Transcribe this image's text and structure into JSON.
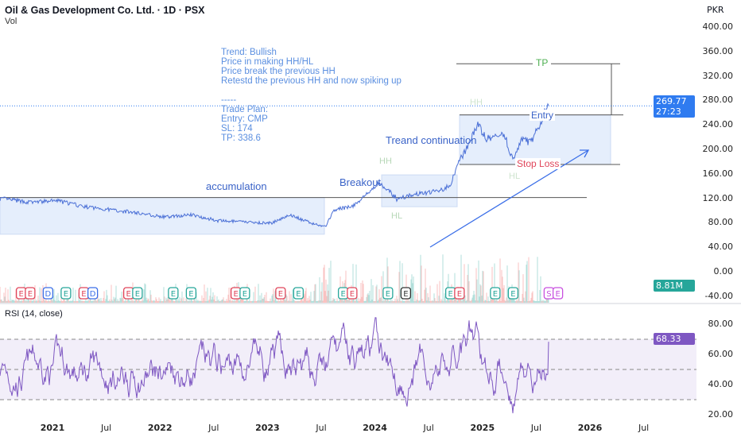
{
  "header": {
    "title": "Oil & Gas Development Co. Ltd. · 1D · PSX",
    "volume_label": "Vol",
    "currency": "PKR"
  },
  "rsi_pane": {
    "title": "RSI (14, close)",
    "value": "68.33",
    "ticks": [
      "80.00",
      "60.00",
      "40.00",
      "20.00"
    ],
    "upper_band": 70,
    "lower_band": 30,
    "color": "#7e57c2"
  },
  "price_axis": {
    "ticks": [
      "400.00",
      "360.00",
      "320.00",
      "280.00",
      "240.00",
      "200.00",
      "160.00",
      "120.00",
      "80.00",
      "40.00",
      "0.00",
      "-40.00"
    ],
    "last_price": "269.77",
    "countdown": "27:23",
    "volume_value": "8.81M"
  },
  "time_axis": {
    "ticks": [
      {
        "label": "2021",
        "year": true
      },
      {
        "label": "Jul"
      },
      {
        "label": "2022",
        "year": true
      },
      {
        "label": "Jul"
      },
      {
        "label": "2023",
        "year": true
      },
      {
        "label": "Jul"
      },
      {
        "label": "2024",
        "year": true
      },
      {
        "label": "Jul"
      },
      {
        "label": "2025",
        "year": true
      },
      {
        "label": "Jul"
      },
      {
        "label": "2026",
        "year": true
      },
      {
        "label": "Jul"
      }
    ]
  },
  "annotations": {
    "note": "Trend: Bullish\nPrice in making HH/HL\nPrice break the previous HH\nRetestd the previous HH and now spiking up\n\n-----\nTrade Plan:\nEntry: CMP\nSL: 174\nTP: 338.6",
    "accumulation": "accumulation",
    "breakout": "Breakout",
    "continuation": "Treand continuation",
    "hh1": "HH",
    "hl1": "HL",
    "hh2": "HH",
    "hl2": "HL",
    "tp": "TP",
    "entry": "Entry",
    "stop_loss": "Stop Loss",
    "tp_price": 338.6,
    "entry_price": 255,
    "sl_price": 174,
    "support_price": 120
  },
  "colors": {
    "price_line": "#4a6fd6",
    "tp": "#4caf50",
    "stop": "#e0455a",
    "note": "#5b8fe0",
    "box": "#dbe8fb",
    "up": "#26a69a",
    "down": "#ef5350",
    "rsi": "#7e57c2"
  },
  "events": [
    {
      "date": "2020-09",
      "letter": "E",
      "color": "#e0455a"
    },
    {
      "date": "2020-10",
      "letter": "E",
      "color": "#e0455a"
    },
    {
      "date": "2020-12",
      "letter": "D",
      "color": "#3a6ee8"
    },
    {
      "date": "2021-02",
      "letter": "E",
      "color": "#26a69a"
    },
    {
      "date": "2021-04",
      "letter": "E",
      "color": "#e0455a"
    },
    {
      "date": "2021-05",
      "letter": "D",
      "color": "#3a6ee8"
    },
    {
      "date": "2021-09",
      "letter": "E",
      "color": "#e0455a"
    },
    {
      "date": "2021-10",
      "letter": "E",
      "color": "#26a69a"
    },
    {
      "date": "2022-02",
      "letter": "E",
      "color": "#26a69a"
    },
    {
      "date": "2022-04",
      "letter": "E",
      "color": "#26a69a"
    },
    {
      "date": "2022-09",
      "letter": "E",
      "color": "#e0455a"
    },
    {
      "date": "2022-10",
      "letter": "E",
      "color": "#26a69a"
    },
    {
      "date": "2023-02",
      "letter": "E",
      "color": "#e0455a"
    },
    {
      "date": "2023-04",
      "letter": "E",
      "color": "#26a69a"
    },
    {
      "date": "2023-09",
      "letter": "E",
      "color": "#26a69a"
    },
    {
      "date": "2023-10",
      "letter": "E",
      "color": "#e0455a"
    },
    {
      "date": "2024-02",
      "letter": "E",
      "color": "#26a69a"
    },
    {
      "date": "2024-04",
      "letter": "E",
      "color": "#333333"
    },
    {
      "date": "2024-09",
      "letter": "E",
      "color": "#26a69a"
    },
    {
      "date": "2024-10",
      "letter": "E",
      "color": "#e0455a"
    },
    {
      "date": "2025-02",
      "letter": "E",
      "color": "#26a69a"
    },
    {
      "date": "2025-04",
      "letter": "E",
      "color": "#26a69a"
    },
    {
      "date": "2025-08",
      "letter": "S",
      "color": "#c850e0"
    },
    {
      "date": "2025-09",
      "letter": "E",
      "color": "#c850e0"
    }
  ],
  "chart_data": {
    "type": "line",
    "ylabel": "PKR",
    "ylim": [
      -40,
      400
    ],
    "xlim": [
      "2020-07",
      "2026-10"
    ],
    "grid": false,
    "series": [
      {
        "values_approx": [
          [
            "2020-07",
            118
          ],
          [
            "2020-10",
            112
          ],
          [
            "2021-01",
            115
          ],
          [
            "2021-04",
            105
          ],
          [
            "2021-07",
            100
          ],
          [
            "2021-10",
            95
          ],
          [
            "2022-01",
            88
          ],
          [
            "2022-04",
            92
          ],
          [
            "2022-07",
            82
          ],
          [
            "2022-10",
            80
          ],
          [
            "2023-01",
            78
          ],
          [
            "2023-03",
            92
          ],
          [
            "2023-05",
            80
          ],
          [
            "2023-07",
            72
          ],
          [
            "2023-08",
            100
          ],
          [
            "2023-10",
            105
          ],
          [
            "2023-12",
            130
          ],
          [
            "2024-01",
            145
          ],
          [
            "2024-03",
            118
          ],
          [
            "2024-05",
            125
          ],
          [
            "2024-08",
            132
          ],
          [
            "2024-09",
            142
          ],
          [
            "2024-10",
            180
          ],
          [
            "2024-11",
            205
          ],
          [
            "2024-12",
            240
          ],
          [
            "2025-01",
            215
          ],
          [
            "2025-03",
            225
          ],
          [
            "2025-04",
            180
          ],
          [
            "2025-05",
            215
          ],
          [
            "2025-06",
            210
          ],
          [
            "2025-07",
            240
          ],
          [
            "2025-08",
            275
          ],
          [
            "2025-08",
            269.77
          ]
        ]
      }
    ]
  }
}
